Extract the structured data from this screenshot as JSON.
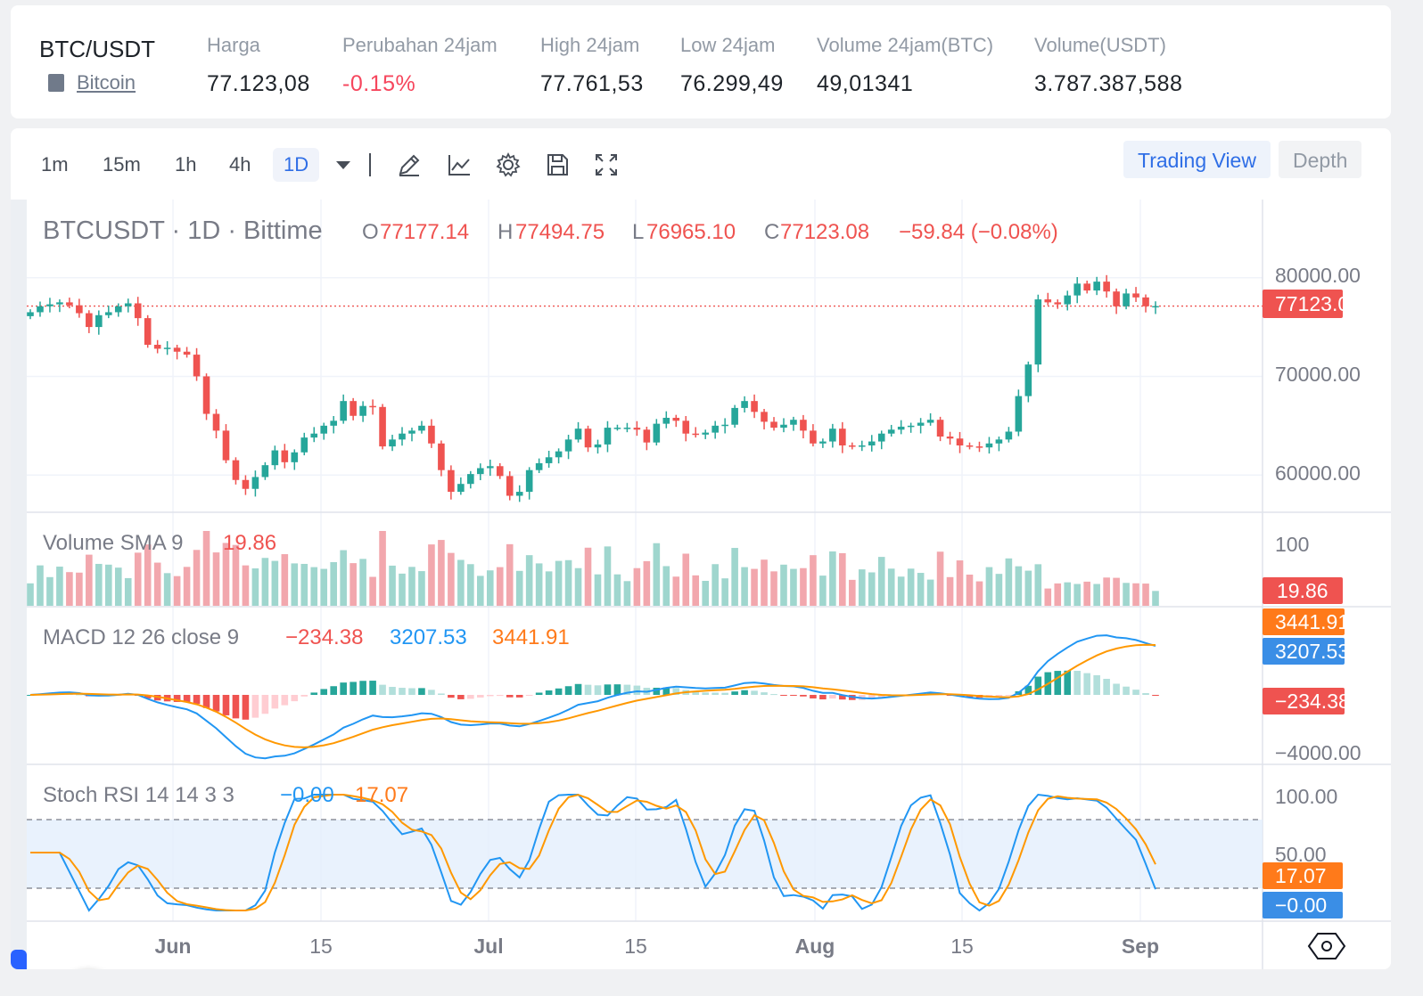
{
  "ticker": {
    "pair": "BTC/USDT",
    "coin_name": "Bitcoin",
    "stats": [
      {
        "label": "Harga",
        "value": "77.123,08",
        "negative": false
      },
      {
        "label": "Perubahan 24jam",
        "value": "-0.15%",
        "negative": true
      },
      {
        "label": "High 24jam",
        "value": "77.761,53",
        "negative": false
      },
      {
        "label": "Low 24jam",
        "value": "76.299,49",
        "negative": false
      },
      {
        "label": "Volume 24jam(BTC)",
        "value": "49,01341",
        "negative": false
      },
      {
        "label": "Volume(USDT)",
        "value": "3.787.387,588",
        "negative": false
      }
    ]
  },
  "toolbar": {
    "timeframes": [
      "1m",
      "15m",
      "1h",
      "4h",
      "1D"
    ],
    "active_timeframe": "1D",
    "icons": [
      "chevron-down-icon",
      "pencil-icon",
      "indicator-icon",
      "gear-icon",
      "save-icon",
      "fullscreen-icon"
    ],
    "view_tabs": [
      "Trading View",
      "Depth"
    ],
    "active_view": "Trading View"
  },
  "chart_data": {
    "type": "candlestick",
    "title": "BTCUSDT · 1D · Bittime",
    "ohlc_legend": {
      "o": "77177.14",
      "h": "77494.75",
      "l": "76965.10",
      "c": "77123.08",
      "change": "−59.84 (−0.08%)"
    },
    "price_axis_ticks": [
      "80000.00",
      "70000.00",
      "60000.00"
    ],
    "last_price_label": "77123.08",
    "y_range": [
      56500,
      82500
    ],
    "x_ticks": [
      "Jun",
      "15",
      "Jul",
      "15",
      "Aug",
      "15",
      "Sep"
    ],
    "colors": {
      "up": "#26a69a",
      "down": "#ef5350",
      "macd": "#2196f3",
      "signal": "#ff9800"
    },
    "closes": [
      76500,
      77100,
      77300,
      77500,
      77200,
      76400,
      75000,
      76200,
      76500,
      77100,
      77400,
      75900,
      73200,
      72800,
      72900,
      72500,
      72200,
      70000,
      66200,
      64500,
      61500,
      59500,
      58600,
      59800,
      61000,
      62500,
      61300,
      62300,
      63800,
      64200,
      65000,
      65500,
      67500,
      66000,
      67000,
      66900,
      62900,
      63600,
      64200,
      64500,
      65000,
      63200,
      60500,
      58300,
      59100,
      60100,
      60700,
      60900,
      59900,
      57900,
      58300,
      60500,
      61200,
      61800,
      62400,
      63600,
      64700,
      62800,
      63100,
      64800,
      64800,
      64800,
      64600,
      63300,
      65200,
      65800,
      65500,
      64200,
      64100,
      64300,
      65000,
      65100,
      66800,
      67500,
      66400,
      65400,
      64800,
      65100,
      65600,
      64500,
      63200,
      63400,
      64700,
      63000,
      62900,
      63000,
      63400,
      64200,
      64600,
      64900,
      65000,
      65300,
      65600,
      63900,
      63700,
      63000,
      62900,
      62800,
      63200,
      63600,
      64400,
      68000,
      71200,
      77800,
      77500,
      77300,
      78200,
      79400,
      78700,
      79600,
      78600,
      77100,
      78400,
      78000,
      77100,
      77123
    ]
  },
  "volume_panel": {
    "label": "Volume SMA 9",
    "sma_value": "19.86",
    "axis_tick": "100",
    "last_label": "19.86"
  },
  "macd_panel": {
    "label": "MACD 12 26 close 9",
    "hist_value": "−234.38",
    "macd_value": "3207.53",
    "signal_value": "3441.91",
    "axis_tick": "−4000.00",
    "labels": [
      "3441.91",
      "3207.53",
      "−234.38"
    ]
  },
  "stoch_panel": {
    "label": "Stoch RSI 14 14 3 3",
    "k_value": "−0.00",
    "d_value": "17.07",
    "axis_ticks": [
      "100.00",
      "50.00"
    ],
    "labels": [
      "17.07",
      "−0.00"
    ]
  }
}
